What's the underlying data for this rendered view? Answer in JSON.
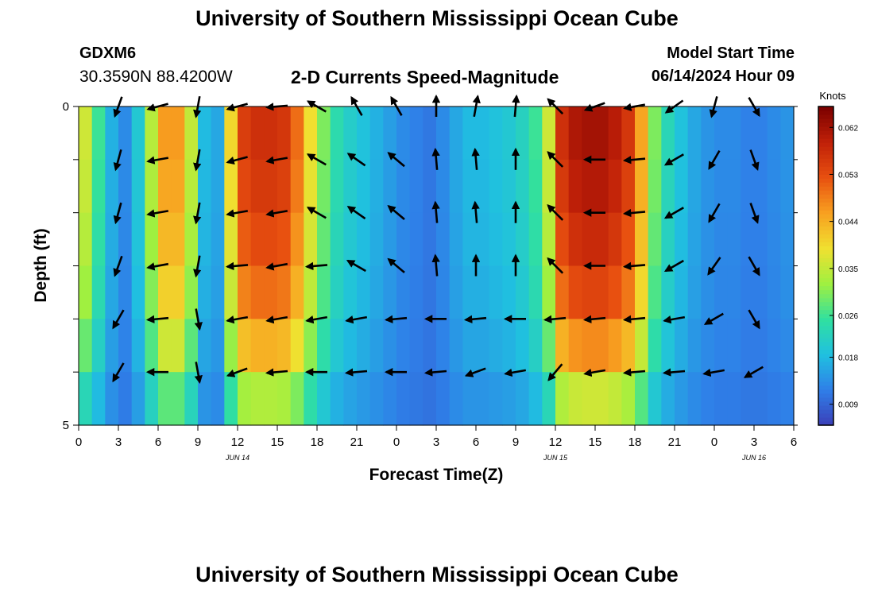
{
  "header": {
    "title": "University of Southern Mississippi Ocean Cube",
    "station": "GDXM6",
    "coordinates": "30.3590N  88.4200W",
    "subtitle": "2-D Currents Speed-Magnitude",
    "model_start_label": "Model Start Time",
    "model_start_value": "06/14/2024 Hour 09"
  },
  "footer": {
    "title": "University of Southern Mississippi Ocean Cube"
  },
  "chart_data": {
    "type": "heatmap",
    "title": "2-D Currents Speed-Magnitude",
    "xlabel": "Forecast Time(Z)",
    "ylabel": "Depth (ft)",
    "x_tick_labels": [
      "0",
      "3",
      "6",
      "9",
      "12",
      "15",
      "18",
      "21",
      "0",
      "3",
      "6",
      "9",
      "12",
      "15",
      "18",
      "21",
      "0",
      "3",
      "6"
    ],
    "x_range_hours": [
      0,
      54
    ],
    "date_labels": [
      {
        "label": "JUN 14",
        "hour": 12
      },
      {
        "label": "JUN 15",
        "hour": 36
      },
      {
        "label": "JUN 16",
        "hour": 51
      }
    ],
    "y_tick_labels": [
      "0",
      "5"
    ],
    "y_range_ft": [
      0,
      5
    ],
    "colorbar": {
      "unit": "Knots",
      "tick_labels": [
        "0.009",
        "0.018",
        "0.026",
        "0.035",
        "0.044",
        "0.053",
        "0.062"
      ],
      "tick_values": [
        0.009,
        0.018,
        0.026,
        0.035,
        0.044,
        0.053,
        0.062
      ],
      "range": [
        0.005,
        0.066
      ],
      "colors": [
        "#3b3fb8",
        "#2f7fe8",
        "#20c0e0",
        "#30e0a0",
        "#a0f040",
        "#f0e030",
        "#f8a020",
        "#e85010",
        "#c02008",
        "#7a0000"
      ]
    },
    "speed_profile": {
      "hours": [
        0,
        1,
        2,
        3,
        4,
        5,
        6,
        7,
        8,
        9,
        10,
        11,
        12,
        13,
        14,
        15,
        16,
        17,
        18,
        19,
        20,
        21,
        22,
        23,
        24,
        25,
        26,
        27,
        28,
        29,
        30,
        31,
        32,
        33,
        34,
        35,
        36,
        37,
        38,
        39,
        40,
        41,
        42,
        43,
        44,
        45,
        46,
        47,
        48,
        49,
        50,
        51,
        52,
        53,
        54
      ],
      "knots": [
        0.036,
        0.026,
        0.017,
        0.013,
        0.02,
        0.034,
        0.046,
        0.046,
        0.035,
        0.018,
        0.016,
        0.04,
        0.055,
        0.057,
        0.057,
        0.056,
        0.05,
        0.039,
        0.03,
        0.024,
        0.021,
        0.019,
        0.017,
        0.015,
        0.013,
        0.012,
        0.011,
        0.013,
        0.016,
        0.018,
        0.018,
        0.019,
        0.02,
        0.022,
        0.026,
        0.036,
        0.057,
        0.061,
        0.062,
        0.062,
        0.06,
        0.056,
        0.045,
        0.03,
        0.023,
        0.019,
        0.016,
        0.014,
        0.013,
        0.013,
        0.012,
        0.012,
        0.013,
        0.014,
        0.014
      ]
    },
    "depth_factors": [
      1.0,
      0.97,
      0.92,
      0.85,
      0.72,
      0.5
    ],
    "arrows": {
      "hours": [
        3,
        6,
        9,
        12,
        15,
        18,
        21,
        24,
        27,
        30,
        33,
        36,
        39,
        42,
        45,
        48,
        51
      ],
      "directions_deg_per_depth": [
        [
          250,
          195,
          260,
          195,
          185,
          150,
          120,
          120,
          90,
          80,
          85,
          135,
          200,
          190,
          215,
          255,
          300
        ],
        [
          255,
          190,
          260,
          195,
          190,
          150,
          145,
          140,
          95,
          95,
          90,
          135,
          180,
          185,
          210,
          240,
          290
        ],
        [
          255,
          190,
          260,
          190,
          190,
          150,
          145,
          140,
          95,
          95,
          90,
          135,
          180,
          185,
          210,
          240,
          290
        ],
        [
          250,
          190,
          260,
          185,
          190,
          185,
          150,
          140,
          95,
          90,
          90,
          135,
          180,
          185,
          210,
          235,
          300
        ],
        [
          240,
          185,
          280,
          190,
          190,
          190,
          190,
          185,
          180,
          185,
          180,
          185,
          185,
          185,
          190,
          210,
          300
        ],
        [
          240,
          180,
          280,
          200,
          185,
          180,
          185,
          180,
          185,
          200,
          190,
          230,
          190,
          185,
          185,
          190,
          210
        ]
      ]
    }
  }
}
